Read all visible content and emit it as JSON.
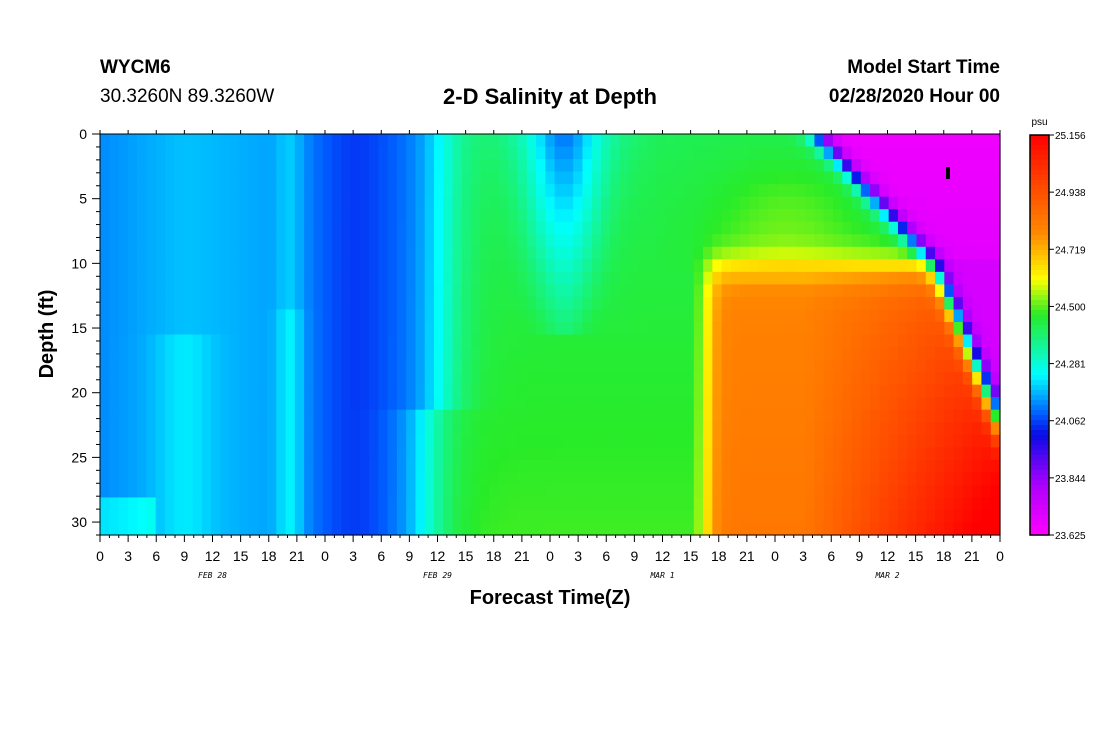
{
  "header": {
    "station": "WYCM6",
    "coords": "30.3260N 89.3260W",
    "title": "2-D Salinity at Depth",
    "model_start_label": "Model Start Time",
    "model_start_value": "02/28/2020 Hour 00"
  },
  "chart_data": {
    "type": "heatmap",
    "title": "2-D Salinity at Depth",
    "xlabel": "Forecast Time(Z)",
    "ylabel": "Depth (ft)",
    "x_hours_range": [
      0,
      96
    ],
    "x_tick_labels": [
      "0",
      "3",
      "6",
      "9",
      "12",
      "15",
      "18",
      "21",
      "0",
      "3",
      "6",
      "9",
      "12",
      "15",
      "18",
      "21",
      "0",
      "3",
      "6",
      "9",
      "12",
      "15",
      "18",
      "21",
      "0",
      "3",
      "6",
      "9",
      "12",
      "15",
      "18",
      "21",
      "0"
    ],
    "day_labels": [
      "FEB 28",
      "FEB 29",
      "MAR 1",
      "MAR 2"
    ],
    "ylim": [
      0,
      31
    ],
    "y_inverted": true,
    "y_tick_labels": [
      "0",
      "5",
      "10",
      "15",
      "20",
      "25",
      "30"
    ],
    "colorbar": {
      "unit": "psu",
      "labels": [
        "25.156",
        "24.938",
        "24.719",
        "24.500",
        "24.281",
        "24.062",
        "23.844",
        "23.625"
      ],
      "range": [
        23.625,
        25.156
      ]
    },
    "description_fields": {
      "early_period_salinity_psu": 24.1,
      "late_bottom_salinity_psu": 25.1,
      "late_surface_salinity_psu": 23.65
    }
  }
}
